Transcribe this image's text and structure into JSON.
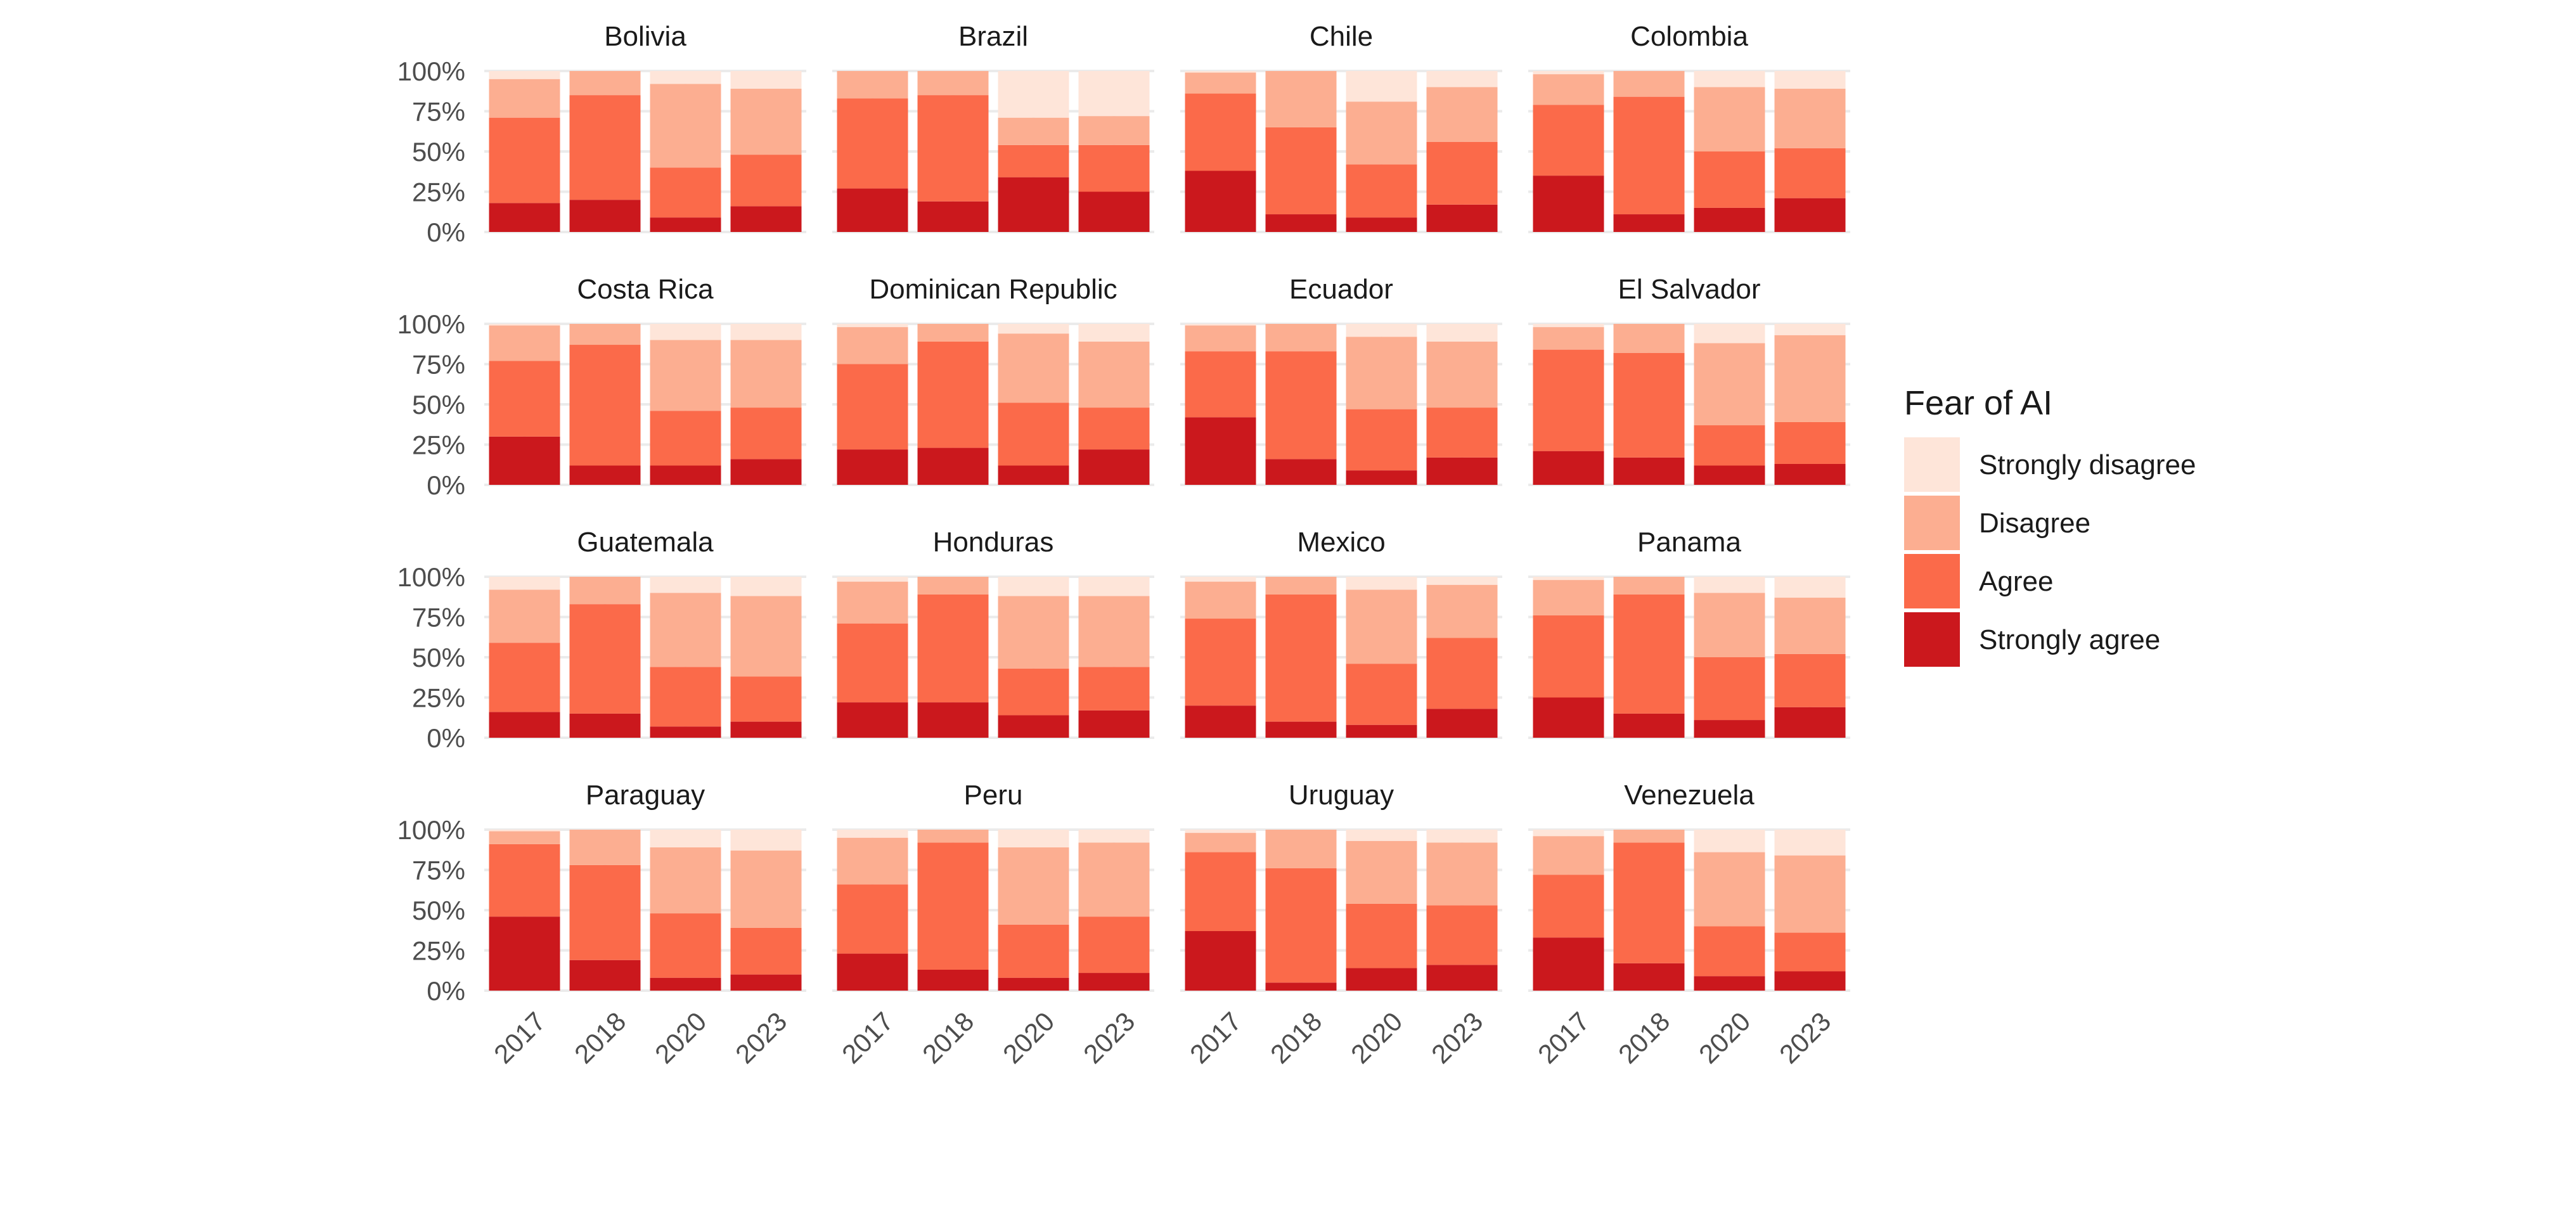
{
  "chart_data": {
    "type": "bar",
    "stacked": true,
    "normalized": true,
    "x": [
      "2017",
      "2018",
      "2020",
      "2023"
    ],
    "ylim": [
      0,
      1
    ],
    "y_ticks": [
      "0%",
      "25%",
      "50%",
      "75%",
      "100%"
    ],
    "grid": true,
    "legend": {
      "title": "Fear of AI",
      "placement": "right",
      "entries": [
        "Strongly disagree",
        "Disagree",
        "Agree",
        "Strongly agree"
      ]
    },
    "stack_order": [
      "Strongly agree",
      "Agree",
      "Disagree",
      "Strongly disagree"
    ],
    "colors": {
      "Strongly agree": "#cb181d",
      "Agree": "#fb6a4a",
      "Disagree": "#fcae91",
      "Strongly disagree": "#fee5d9"
    },
    "panels": [
      {
        "country": "Bolivia",
        "values": {
          "Strongly agree": [
            0.18,
            0.2,
            0.09,
            0.16
          ],
          "Agree": [
            0.53,
            0.65,
            0.31,
            0.32
          ],
          "Disagree": [
            0.24,
            0.15,
            0.52,
            0.41
          ],
          "Strongly disagree": [
            0.05,
            0.0,
            0.08,
            0.11
          ]
        }
      },
      {
        "country": "Brazil",
        "values": {
          "Strongly agree": [
            0.27,
            0.19,
            0.34,
            0.25
          ],
          "Agree": [
            0.56,
            0.66,
            0.2,
            0.29
          ],
          "Disagree": [
            0.17,
            0.15,
            0.17,
            0.18
          ],
          "Strongly disagree": [
            0.0,
            0.0,
            0.29,
            0.28
          ]
        }
      },
      {
        "country": "Chile",
        "values": {
          "Strongly agree": [
            0.38,
            0.11,
            0.09,
            0.17
          ],
          "Agree": [
            0.48,
            0.54,
            0.33,
            0.39
          ],
          "Disagree": [
            0.13,
            0.35,
            0.39,
            0.34
          ],
          "Strongly disagree": [
            0.01,
            0.0,
            0.19,
            0.1
          ]
        }
      },
      {
        "country": "Colombia",
        "values": {
          "Strongly agree": [
            0.35,
            0.11,
            0.15,
            0.21
          ],
          "Agree": [
            0.44,
            0.73,
            0.35,
            0.31
          ],
          "Disagree": [
            0.19,
            0.16,
            0.4,
            0.37
          ],
          "Strongly disagree": [
            0.02,
            0.0,
            0.1,
            0.11
          ]
        }
      },
      {
        "country": "Costa Rica",
        "values": {
          "Strongly agree": [
            0.3,
            0.12,
            0.12,
            0.16
          ],
          "Agree": [
            0.47,
            0.75,
            0.34,
            0.32
          ],
          "Disagree": [
            0.22,
            0.13,
            0.44,
            0.42
          ],
          "Strongly disagree": [
            0.01,
            0.0,
            0.1,
            0.1
          ]
        }
      },
      {
        "country": "Dominican Republic",
        "values": {
          "Strongly agree": [
            0.22,
            0.23,
            0.12,
            0.22
          ],
          "Agree": [
            0.53,
            0.66,
            0.39,
            0.26
          ],
          "Disagree": [
            0.23,
            0.11,
            0.43,
            0.41
          ],
          "Strongly disagree": [
            0.02,
            0.0,
            0.06,
            0.11
          ]
        }
      },
      {
        "country": "Ecuador",
        "values": {
          "Strongly agree": [
            0.42,
            0.16,
            0.09,
            0.17
          ],
          "Agree": [
            0.41,
            0.67,
            0.38,
            0.31
          ],
          "Disagree": [
            0.16,
            0.17,
            0.45,
            0.41
          ],
          "Strongly disagree": [
            0.01,
            0.0,
            0.08,
            0.11
          ]
        }
      },
      {
        "country": "El Salvador",
        "values": {
          "Strongly agree": [
            0.21,
            0.17,
            0.12,
            0.13
          ],
          "Agree": [
            0.63,
            0.65,
            0.25,
            0.26
          ],
          "Disagree": [
            0.14,
            0.18,
            0.51,
            0.54
          ],
          "Strongly disagree": [
            0.02,
            0.0,
            0.12,
            0.07
          ]
        }
      },
      {
        "country": "Guatemala",
        "values": {
          "Strongly agree": [
            0.16,
            0.15,
            0.07,
            0.1
          ],
          "Agree": [
            0.43,
            0.68,
            0.37,
            0.28
          ],
          "Disagree": [
            0.33,
            0.17,
            0.46,
            0.5
          ],
          "Strongly disagree": [
            0.08,
            0.0,
            0.1,
            0.12
          ]
        }
      },
      {
        "country": "Honduras",
        "values": {
          "Strongly agree": [
            0.22,
            0.22,
            0.14,
            0.17
          ],
          "Agree": [
            0.49,
            0.67,
            0.29,
            0.27
          ],
          "Disagree": [
            0.26,
            0.11,
            0.45,
            0.44
          ],
          "Strongly disagree": [
            0.03,
            0.0,
            0.12,
            0.12
          ]
        }
      },
      {
        "country": "Mexico",
        "values": {
          "Strongly agree": [
            0.2,
            0.1,
            0.08,
            0.18
          ],
          "Agree": [
            0.54,
            0.79,
            0.38,
            0.44
          ],
          "Disagree": [
            0.23,
            0.11,
            0.46,
            0.33
          ],
          "Strongly disagree": [
            0.03,
            0.0,
            0.08,
            0.05
          ]
        }
      },
      {
        "country": "Panama",
        "values": {
          "Strongly agree": [
            0.25,
            0.15,
            0.11,
            0.19
          ],
          "Agree": [
            0.51,
            0.74,
            0.39,
            0.33
          ],
          "Disagree": [
            0.22,
            0.11,
            0.4,
            0.35
          ],
          "Strongly disagree": [
            0.02,
            0.0,
            0.1,
            0.13
          ]
        }
      },
      {
        "country": "Paraguay",
        "values": {
          "Strongly agree": [
            0.46,
            0.19,
            0.08,
            0.1
          ],
          "Agree": [
            0.45,
            0.59,
            0.4,
            0.29
          ],
          "Disagree": [
            0.08,
            0.22,
            0.41,
            0.48
          ],
          "Strongly disagree": [
            0.01,
            0.0,
            0.11,
            0.13
          ]
        }
      },
      {
        "country": "Peru",
        "values": {
          "Strongly agree": [
            0.23,
            0.13,
            0.08,
            0.11
          ],
          "Agree": [
            0.43,
            0.79,
            0.33,
            0.35
          ],
          "Disagree": [
            0.29,
            0.08,
            0.48,
            0.46
          ],
          "Strongly disagree": [
            0.05,
            0.0,
            0.11,
            0.08
          ]
        }
      },
      {
        "country": "Uruguay",
        "values": {
          "Strongly agree": [
            0.37,
            0.05,
            0.14,
            0.16
          ],
          "Agree": [
            0.49,
            0.71,
            0.4,
            0.37
          ],
          "Disagree": [
            0.12,
            0.24,
            0.39,
            0.39
          ],
          "Strongly disagree": [
            0.02,
            0.0,
            0.07,
            0.08
          ]
        }
      },
      {
        "country": "Venezuela",
        "values": {
          "Strongly agree": [
            0.33,
            0.17,
            0.09,
            0.12
          ],
          "Agree": [
            0.39,
            0.75,
            0.31,
            0.24
          ],
          "Disagree": [
            0.24,
            0.08,
            0.46,
            0.48
          ],
          "Strongly disagree": [
            0.04,
            0.0,
            0.14,
            0.16
          ]
        }
      }
    ]
  }
}
